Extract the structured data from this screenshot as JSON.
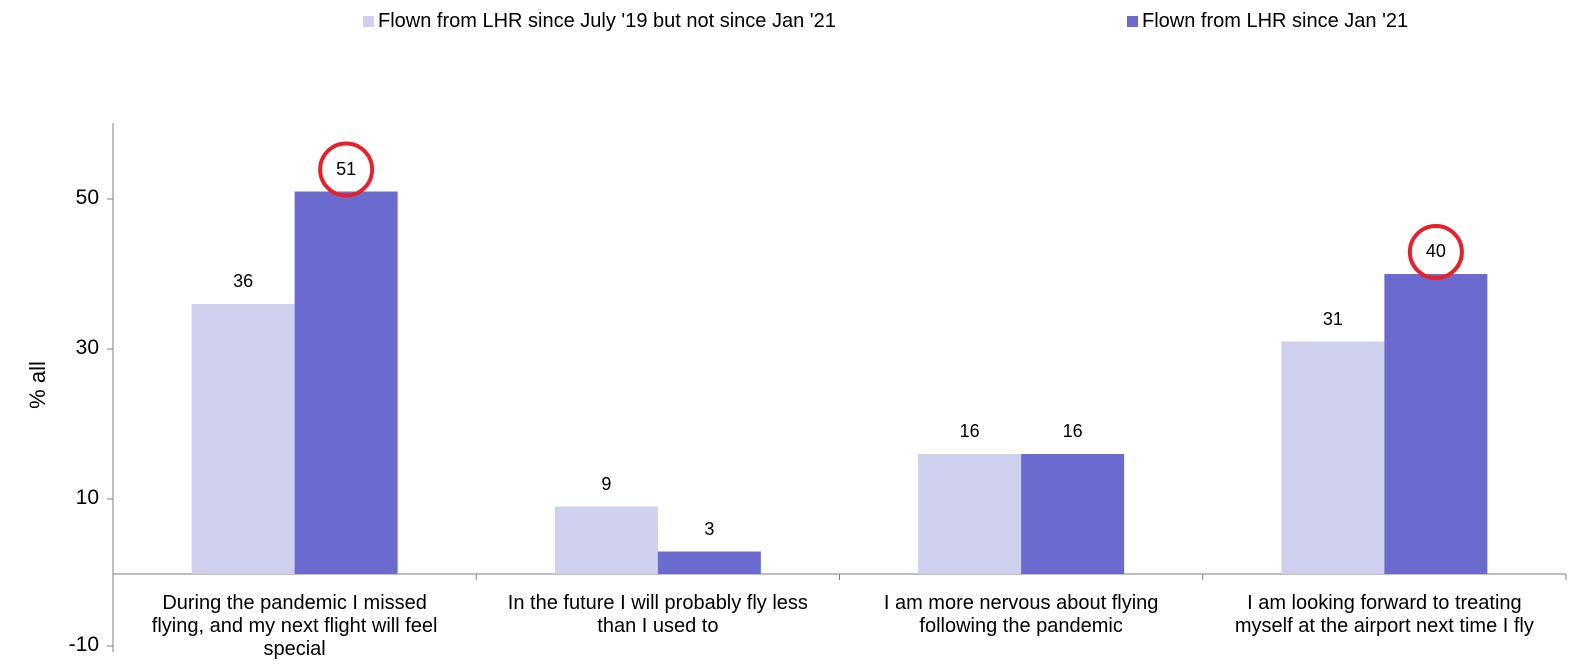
{
  "chart_data": {
    "type": "bar",
    "ylabel": "% all",
    "ylim": [
      -10,
      60
    ],
    "yticks": [
      50,
      30,
      10,
      -10
    ],
    "legend_position": "top",
    "categories": [
      "During the pandemic I missed flying, and my next flight will feel special",
      "In the future I will probably fly less than I used to",
      "I am more nervous about flying following the pandemic",
      "I am looking forward to treating myself at the airport next time I fly"
    ],
    "category_lines": [
      [
        "During the pandemic I missed",
        "flying, and my next flight will feel",
        "special"
      ],
      [
        "In the future I will probably fly less",
        "than I used to"
      ],
      [
        "I am more nervous about flying",
        "following the pandemic"
      ],
      [
        "I am looking forward to treating",
        "myself at the airport next time I fly"
      ]
    ],
    "series": [
      {
        "name": "Flown from LHR since July '19 but not since Jan '21",
        "color": "#cfcfee",
        "values": [
          36,
          9,
          16,
          31
        ]
      },
      {
        "name": "Flown from LHR since Jan '21",
        "color": "#6b6bcf",
        "values": [
          51,
          3,
          16,
          40
        ]
      }
    ],
    "highlighted": [
      {
        "series": 1,
        "index": 0
      },
      {
        "series": 1,
        "index": 3
      }
    ],
    "highlight_color": "#e8202a"
  }
}
